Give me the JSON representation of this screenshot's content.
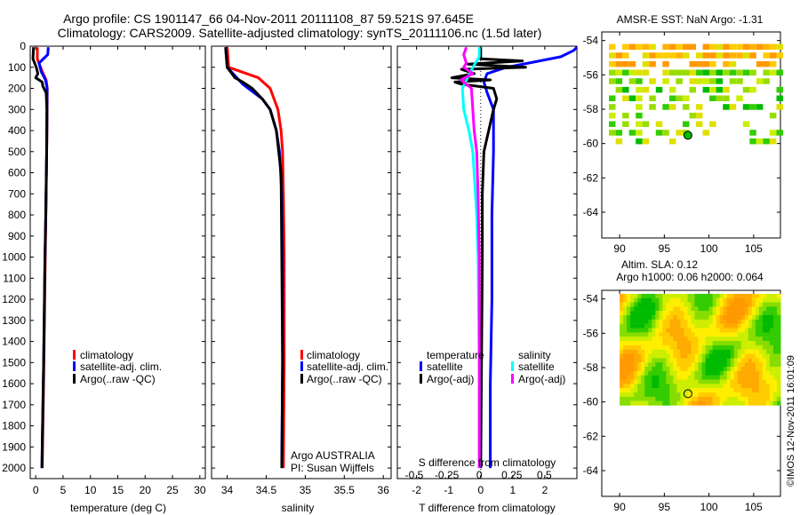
{
  "header": {
    "line1": "Argo profile: CS 1901147_66 04-Nov-2011 20111108_87 59.521S 97.645E",
    "line2": "Climatology: CARS2009. Satellite-adjusted climatology: synTS_20111106.nc (1.5d later)"
  },
  "colors": {
    "climatology": "#ff0000",
    "satellite": "#0000ff",
    "argo": "#000000",
    "sal_satellite": "#00ffff",
    "sal_argo": "#ff00ff"
  },
  "chart_data": [
    {
      "type": "line",
      "name": "temperature",
      "xlabel": "temperature (deg C)",
      "ylabel": "",
      "xlim": [
        -1,
        31
      ],
      "ylim": [
        2050,
        0
      ],
      "xticks": [
        "0",
        "5",
        "10",
        "15",
        "20",
        "25",
        "30"
      ],
      "yticks": [
        "0",
        "100",
        "200",
        "300",
        "400",
        "500",
        "600",
        "700",
        "800",
        "900",
        "1000",
        "1100",
        "1200",
        "1300",
        "1400",
        "1500",
        "1600",
        "1700",
        "1800",
        "1900",
        "2000"
      ],
      "legend": [
        "climatology",
        "satellite-adj. clim.",
        "Argo(..raw -QC)"
      ],
      "series": [
        {
          "name": "climatology",
          "depth": [
            5,
            60,
            120,
            160,
            200,
            260,
            400,
            700,
            1000,
            1500,
            1900,
            2000
          ],
          "values": [
            0.3,
            0.3,
            1.2,
            1.9,
            2.1,
            2.1,
            2.05,
            1.9,
            1.75,
            1.5,
            1.25,
            1.2
          ]
        },
        {
          "name": "satellite-adj. clim.",
          "depth": [
            5,
            40,
            80,
            120,
            160,
            200,
            300,
            500,
            800,
            1000,
            1500,
            1900,
            2000
          ],
          "values": [
            2.3,
            2.2,
            0.6,
            1.0,
            1.8,
            2.1,
            2.05,
            2.0,
            1.85,
            1.7,
            1.45,
            1.2,
            1.15
          ]
        },
        {
          "name": "Argo(..raw -QC)",
          "depth": [
            5,
            60,
            100,
            130,
            150,
            170,
            190,
            220,
            300,
            500,
            800,
            1000,
            1500,
            1900,
            2000
          ],
          "values": [
            -0.4,
            -0.5,
            0.1,
            0.4,
            0.0,
            1.2,
            1.3,
            1.9,
            2.05,
            2.0,
            1.85,
            1.7,
            1.45,
            1.2,
            1.15
          ]
        }
      ]
    },
    {
      "type": "line",
      "name": "salinity",
      "xlabel": "salinity",
      "xlim": [
        33.8,
        36.1
      ],
      "ylim": [
        2050,
        0
      ],
      "xticks": [
        "34",
        "34.5",
        "35",
        "35.5",
        "36"
      ],
      "legend": [
        "climatology",
        "satellite-adj. clim.",
        "Argo(..raw -QC)"
      ],
      "annotation": [
        "Argo AUSTRALIA",
        "PI: Susan Wijffels"
      ],
      "series": [
        {
          "name": "climatology",
          "depth": [
            5,
            100,
            150,
            200,
            300,
            400,
            500,
            700,
            1000,
            1500,
            2000
          ],
          "values": [
            34.0,
            34.02,
            34.4,
            34.55,
            34.65,
            34.69,
            34.71,
            34.72,
            34.73,
            34.73,
            34.72
          ]
        },
        {
          "name": "satellite-adj. clim.",
          "depth": [
            5,
            100,
            180,
            250,
            300,
            400,
            500,
            700,
            1000,
            1500,
            2000
          ],
          "values": [
            33.98,
            34.0,
            34.2,
            34.45,
            34.55,
            34.63,
            34.67,
            34.7,
            34.71,
            34.71,
            34.7
          ]
        },
        {
          "name": "Argo(..raw -QC)",
          "depth": [
            5,
            100,
            150,
            170,
            200,
            250,
            300,
            400,
            600,
            1000,
            1500,
            2000
          ],
          "values": [
            33.98,
            34.0,
            34.1,
            34.2,
            34.32,
            34.45,
            34.55,
            34.63,
            34.69,
            34.7,
            34.71,
            34.7
          ]
        }
      ]
    },
    {
      "type": "line",
      "name": "difference",
      "xlabel": "T difference from climatology",
      "xlabel_top": "S difference from climatology",
      "xlim": [
        -2.6,
        3.0
      ],
      "slim": [
        -0.63,
        0.75
      ],
      "ylim": [
        2050,
        0
      ],
      "xticks": [
        "-2",
        "-1",
        "0",
        "1",
        "2"
      ],
      "sticks": [
        "-0.5",
        "-0.25",
        "0",
        "0.25",
        "0.5"
      ],
      "legend_groups": [
        {
          "title": "temperature",
          "entries": [
            "satellite",
            "Argo(-adj)"
          ]
        },
        {
          "title": "salinity",
          "entries": [
            "satellite",
            "Argo(-adj)"
          ]
        }
      ],
      "series": [
        {
          "name": "temperature satellite",
          "depth": [
            5,
            20,
            50,
            80,
            100,
            130,
            170,
            220,
            300,
            500,
            800,
            1200,
            1600,
            2000
          ],
          "values": [
            3.0,
            2.9,
            2.5,
            1.5,
            0.8,
            0.2,
            0.1,
            0.2,
            0.4,
            0.4,
            0.35,
            0.35,
            0.3,
            0.3
          ]
        },
        {
          "name": "temperature Argo(-adj)",
          "depth": [
            5,
            60,
            70,
            85,
            100,
            110,
            130,
            150,
            160,
            170,
            180,
            200,
            250,
            300,
            500,
            700,
            1000,
            2000
          ],
          "values": [
            0.0,
            0.0,
            1.3,
            -0.4,
            1.4,
            -0.6,
            -0.2,
            -0.9,
            0.3,
            -0.8,
            -0.6,
            0.4,
            0.5,
            0.4,
            0.1,
            0.05,
            0.05,
            0.0
          ]
        },
        {
          "name": "salinity satellite",
          "depth": [
            5,
            50,
            100,
            200,
            300,
            400,
            500,
            700,
            800,
            1000,
            1500,
            2000
          ],
          "values": [
            0.0,
            0.0,
            -0.05,
            -0.13,
            -0.12,
            -0.08,
            -0.05,
            -0.03,
            -0.02,
            -0.01,
            0.0,
            0.0
          ]
        },
        {
          "name": "salinity Argo(-adj)",
          "depth": [
            5,
            40,
            80,
            100,
            130,
            160,
            200,
            300,
            400,
            500,
            700,
            1000,
            1500,
            2000
          ],
          "values": [
            -0.1,
            -0.12,
            -0.1,
            -0.12,
            -0.05,
            -0.14,
            -0.06,
            -0.05,
            -0.04,
            -0.02,
            -0.01,
            0.0,
            0.0,
            0.0
          ]
        }
      ]
    },
    {
      "type": "heatmap",
      "name": "sst_map",
      "title": "AMSR-E SST: NaN Argo: -1.31",
      "xticks": [
        "90",
        "95",
        "100",
        "105"
      ],
      "yticks": [
        "-54",
        "-56",
        "-58",
        "-60",
        "-62",
        "-64"
      ],
      "xlim": [
        88,
        108
      ],
      "ylim": [
        -65.5,
        -53.5
      ],
      "marker": {
        "lon": 97.645,
        "lat": -59.521
      }
    },
    {
      "type": "heatmap",
      "name": "sla_map",
      "title_line1": "Altim. SLA: 0.12",
      "title_line2": "Argo h1000: 0.06 h2000: 0.064",
      "xticks": [
        "90",
        "95",
        "100",
        "105"
      ],
      "yticks": [
        "-54",
        "-56",
        "-58",
        "-60",
        "-62",
        "-64"
      ],
      "xlim": [
        88,
        108
      ],
      "ylim": [
        -65.5,
        -53.5
      ],
      "marker": {
        "lon": 97.645,
        "lat": -59.521
      }
    }
  ],
  "footer": {
    "stamp": "©IMOS 12-Nov-2011 16:01:09"
  }
}
